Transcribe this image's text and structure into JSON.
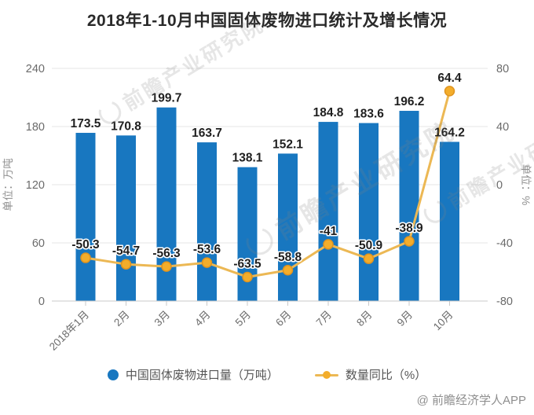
{
  "title": "2018年1-10月中国固体废物进口统计及增长情况",
  "watermark": {
    "text": "前瞻产业研究院"
  },
  "footer": {
    "credit": "@ 前瞻经济学人APP"
  },
  "legend": [
    {
      "label": "中国固体废物进口量（万吨）",
      "color": "#1877c0",
      "marker": "circle"
    },
    {
      "label": "数量同比（%）",
      "color": "#f3ad2b",
      "marker": "line-dot"
    }
  ],
  "colors": {
    "bar": "#1877c0",
    "line": "#ecb854",
    "marker_fill": "#f3ad2b",
    "marker_stroke": "#e0941f",
    "grid": "#e4e4e4",
    "axis_line": "#c9c9c9",
    "tick_label": "#6b6b6b",
    "axis_name": "#8f8f8f",
    "data_label": "#1f1f1f"
  },
  "chart_data": {
    "type": "bar+line combo",
    "title": "2018年1-10月中国固体废物进口统计及增长情况",
    "categories": [
      "2018年1月",
      "2月",
      "3月",
      "4月",
      "5月",
      "6月",
      "7月",
      "8月",
      "9月",
      "10月"
    ],
    "series": [
      {
        "name": "中国固体废物进口量（万吨）",
        "type": "bar",
        "axis": "left",
        "values": [
          173.5,
          170.8,
          199.7,
          163.7,
          138.1,
          152.1,
          184.8,
          183.6,
          196.2,
          164.2
        ]
      },
      {
        "name": "数量同比（%）",
        "type": "line",
        "axis": "right",
        "values": [
          -50.3,
          -54.7,
          -56.3,
          -53.6,
          -63.5,
          -58.8,
          -41,
          -50.9,
          -38.9,
          64.4
        ]
      }
    ],
    "left_axis": {
      "name": "单位：万吨",
      "min": 0,
      "max": 240,
      "ticks": [
        0,
        60,
        120,
        180,
        240
      ]
    },
    "right_axis": {
      "name": "单位：%",
      "min": -80,
      "max": 80,
      "ticks": [
        -80,
        -40,
        0,
        40,
        80
      ]
    },
    "grid": "horizontal gridlines on",
    "legend_position": "bottom",
    "data_labels": "shown on all bars and line points"
  }
}
